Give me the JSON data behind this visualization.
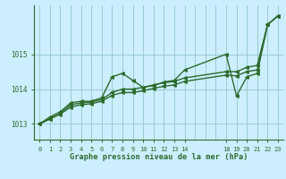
{
  "title": "Graphe pression niveau de la mer (hPa)",
  "background_color": "#cceeff",
  "grid_color": "#99cccc",
  "line_color": "#2d6b2d",
  "xlim": [
    -0.5,
    23.5
  ],
  "ylim": [
    1012.55,
    1016.4
  ],
  "yticks": [
    1013,
    1014,
    1015
  ],
  "ytick_labels": [
    "1013",
    "1014",
    "1015"
  ],
  "xtick_positions": [
    0,
    1,
    2,
    3,
    4,
    5,
    6,
    7,
    8,
    9,
    10,
    11,
    12,
    13,
    14,
    18,
    19,
    20,
    21,
    22,
    23
  ],
  "xtick_labels": [
    "0",
    "1",
    "2",
    "3",
    "4",
    "5",
    "6",
    "7",
    "8",
    "9",
    "10",
    "11",
    "12",
    "13",
    "14",
    "18",
    "19",
    "20",
    "21",
    "22",
    "23"
  ],
  "grid_x": [
    0,
    1,
    2,
    3,
    4,
    5,
    6,
    7,
    8,
    9,
    10,
    11,
    12,
    13,
    14,
    15,
    16,
    17,
    18,
    19,
    20,
    21,
    22,
    23
  ],
  "line1_x": [
    0,
    1,
    2,
    3,
    4,
    5,
    6,
    7,
    8,
    9,
    10,
    11,
    12,
    13,
    14,
    18,
    19,
    20,
    21,
    22,
    23
  ],
  "line1_y": [
    1013.0,
    1013.2,
    1013.35,
    1013.6,
    1013.65,
    1013.65,
    1013.75,
    1014.35,
    1014.45,
    1014.25,
    1014.05,
    1014.1,
    1014.2,
    1014.25,
    1014.55,
    1015.0,
    1013.8,
    1014.35,
    1014.45,
    1015.85,
    1016.1
  ],
  "line2_x": [
    0,
    1,
    2,
    3,
    4,
    5,
    6,
    7,
    8,
    9,
    10,
    11,
    12,
    13,
    14,
    18,
    19,
    20,
    21,
    22,
    23
  ],
  "line2_y": [
    1013.0,
    1013.15,
    1013.3,
    1013.55,
    1013.6,
    1013.63,
    1013.7,
    1013.9,
    1014.0,
    1014.0,
    1014.05,
    1014.12,
    1014.18,
    1014.22,
    1014.32,
    1014.5,
    1014.5,
    1014.62,
    1014.68,
    1015.85,
    1016.1
  ],
  "line3_x": [
    0,
    1,
    2,
    3,
    4,
    5,
    6,
    7,
    8,
    9,
    10,
    11,
    12,
    13,
    14,
    18,
    19,
    20,
    21,
    22,
    23
  ],
  "line3_y": [
    1013.0,
    1013.14,
    1013.28,
    1013.48,
    1013.55,
    1013.58,
    1013.65,
    1013.82,
    1013.9,
    1013.9,
    1013.95,
    1014.02,
    1014.08,
    1014.12,
    1014.22,
    1014.4,
    1014.38,
    1014.5,
    1014.55,
    1015.85,
    1016.1
  ]
}
